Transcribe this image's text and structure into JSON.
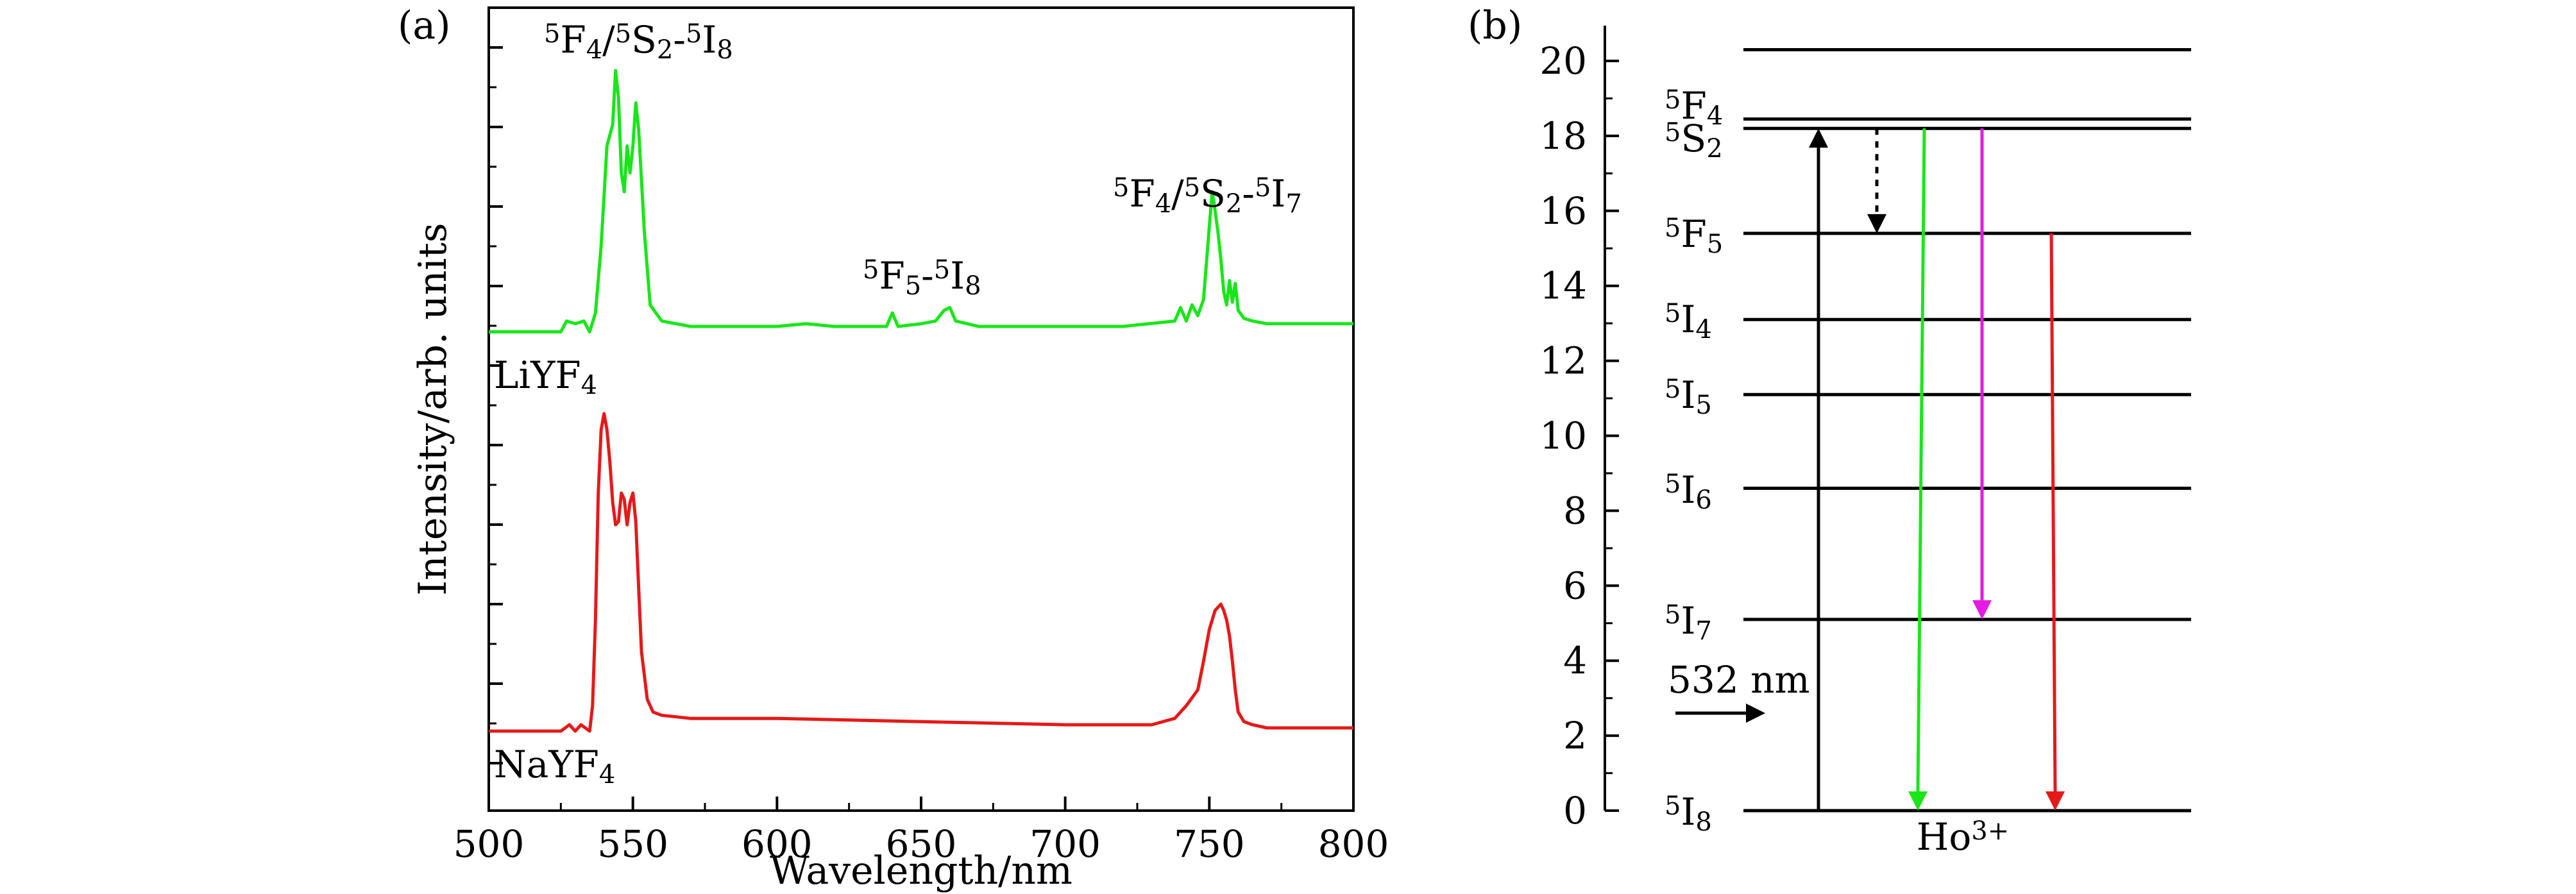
{
  "panel_a": {
    "label": "(a)",
    "xlabel": "Wavelength/nm",
    "ylabel": "Intensity/arb. units",
    "annotations": [
      {
        "id": "a1",
        "parts": [
          [
            "sup",
            "5"
          ],
          [
            "t",
            "F"
          ],
          [
            "sub",
            "4"
          ],
          [
            "t",
            "/"
          ],
          [
            "sup",
            "5"
          ],
          [
            "t",
            "S"
          ],
          [
            "sub",
            "2"
          ],
          [
            "t",
            "-"
          ],
          [
            "sup",
            "5"
          ],
          [
            "t",
            "I"
          ],
          [
            "sub",
            "8"
          ]
        ]
      },
      {
        "id": "a2",
        "parts": [
          [
            "sup",
            "5"
          ],
          [
            "t",
            "F"
          ],
          [
            "sub",
            "5"
          ],
          [
            "t",
            "-"
          ],
          [
            "sup",
            "5"
          ],
          [
            "t",
            "I"
          ],
          [
            "sub",
            "8"
          ]
        ]
      },
      {
        "id": "a3",
        "parts": [
          [
            "sup",
            "5"
          ],
          [
            "t",
            "F"
          ],
          [
            "sub",
            "4"
          ],
          [
            "t",
            "/"
          ],
          [
            "sup",
            "5"
          ],
          [
            "t",
            "S"
          ],
          [
            "sub",
            "2"
          ],
          [
            "t",
            "-"
          ],
          [
            "sup",
            "5"
          ],
          [
            "t",
            "I"
          ],
          [
            "sub",
            "7"
          ]
        ]
      }
    ],
    "sample_labels": [
      {
        "id": "s1",
        "parts": [
          [
            "t",
            "LiYF"
          ],
          [
            "sub",
            "4"
          ]
        ]
      },
      {
        "id": "s2",
        "parts": [
          [
            "t",
            "NaYF"
          ],
          [
            "sub",
            "4"
          ]
        ]
      }
    ]
  },
  "panel_b": {
    "label": "(b)",
    "laser_label": "532 nm",
    "ion_label": [
      [
        "t",
        "Ho"
      ],
      [
        "sup",
        "3+"
      ]
    ],
    "level_labels": [
      {
        "id": "l_5F4",
        "parts": [
          [
            "sup",
            "5"
          ],
          [
            "t",
            "F"
          ],
          [
            "sub",
            "4"
          ]
        ]
      },
      {
        "id": "l_5S2",
        "parts": [
          [
            "sup",
            "5"
          ],
          [
            "t",
            "S"
          ],
          [
            "sub",
            "2"
          ]
        ]
      },
      {
        "id": "l_5F5",
        "parts": [
          [
            "sup",
            "5"
          ],
          [
            "t",
            "F"
          ],
          [
            "sub",
            "5"
          ]
        ]
      },
      {
        "id": "l_5I4",
        "parts": [
          [
            "sup",
            "5"
          ],
          [
            "t",
            "I"
          ],
          [
            "sub",
            "4"
          ]
        ]
      },
      {
        "id": "l_5I5",
        "parts": [
          [
            "sup",
            "5"
          ],
          [
            "t",
            "I"
          ],
          [
            "sub",
            "5"
          ]
        ]
      },
      {
        "id": "l_5I6",
        "parts": [
          [
            "sup",
            "5"
          ],
          [
            "t",
            "I"
          ],
          [
            "sub",
            "6"
          ]
        ]
      },
      {
        "id": "l_5I7",
        "parts": [
          [
            "sup",
            "5"
          ],
          [
            "t",
            "I"
          ],
          [
            "sub",
            "7"
          ]
        ]
      },
      {
        "id": "l_5I8",
        "parts": [
          [
            "sup",
            "5"
          ],
          [
            "t",
            "I"
          ],
          [
            "sub",
            "8"
          ]
        ]
      }
    ]
  },
  "chart_data": [
    {
      "type": "line",
      "panel": "(a)",
      "xlabel": "Wavelength/nm",
      "ylabel": "Intensity/arb. units",
      "xlim": [
        500,
        800
      ],
      "xticks": [
        500,
        550,
        600,
        650,
        700,
        750,
        800
      ],
      "y_ticklabels_shown": false,
      "series": [
        {
          "name": "LiYF4",
          "color": "#19e619",
          "x": [
            500,
            525,
            527,
            530,
            533,
            535,
            537,
            539,
            541,
            543,
            544,
            545,
            546,
            547,
            548,
            549,
            550,
            551,
            552,
            554,
            556,
            560,
            570,
            580,
            600,
            610,
            620,
            630,
            638,
            640,
            642,
            650,
            655,
            658,
            660,
            662,
            670,
            700,
            720,
            738,
            740,
            742,
            744,
            746,
            748,
            750,
            751,
            752,
            753,
            754,
            755,
            756,
            757,
            758,
            759,
            760,
            762,
            765,
            770,
            800
          ],
          "y": [
            0.03,
            0.03,
            0.07,
            0.06,
            0.07,
            0.03,
            0.1,
            0.35,
            0.72,
            0.8,
            1.0,
            0.9,
            0.62,
            0.55,
            0.72,
            0.62,
            0.72,
            0.88,
            0.78,
            0.4,
            0.13,
            0.07,
            0.05,
            0.05,
            0.05,
            0.06,
            0.05,
            0.05,
            0.05,
            0.1,
            0.05,
            0.06,
            0.07,
            0.11,
            0.12,
            0.07,
            0.05,
            0.05,
            0.05,
            0.07,
            0.12,
            0.07,
            0.13,
            0.09,
            0.15,
            0.42,
            0.55,
            0.48,
            0.4,
            0.3,
            0.18,
            0.13,
            0.22,
            0.14,
            0.21,
            0.11,
            0.08,
            0.07,
            0.06,
            0.06
          ]
        },
        {
          "name": "NaYF4",
          "color": "#e61919",
          "x": [
            500,
            520,
            525,
            528,
            530,
            532,
            535,
            536,
            537,
            538,
            539,
            540,
            541,
            542,
            543,
            544,
            545,
            546,
            547,
            548,
            549,
            550,
            551,
            552,
            553,
            555,
            557,
            560,
            570,
            600,
            650,
            700,
            730,
            738,
            742,
            746,
            748,
            750,
            752,
            754,
            755,
            756,
            757,
            758,
            759,
            760,
            762,
            765,
            770,
            800
          ],
          "y": [
            0.0,
            0.0,
            0.0,
            0.02,
            0.0,
            0.02,
            0.0,
            0.08,
            0.35,
            0.75,
            0.95,
            1.0,
            0.95,
            0.85,
            0.72,
            0.65,
            0.66,
            0.75,
            0.73,
            0.65,
            0.72,
            0.75,
            0.66,
            0.45,
            0.25,
            0.1,
            0.06,
            0.05,
            0.04,
            0.04,
            0.03,
            0.02,
            0.02,
            0.04,
            0.08,
            0.13,
            0.22,
            0.32,
            0.38,
            0.4,
            0.38,
            0.35,
            0.3,
            0.22,
            0.13,
            0.06,
            0.03,
            0.02,
            0.01,
            0.01
          ]
        }
      ]
    },
    {
      "type": "diagram",
      "panel": "(b)",
      "ylabel": "",
      "ylim": [
        0,
        20
      ],
      "yticks": [
        0,
        2,
        4,
        6,
        8,
        10,
        12,
        14,
        16,
        18,
        20
      ],
      "energy_levels": [
        {
          "name": "5I8",
          "energy": 0
        },
        {
          "name": "5I7",
          "energy": 5.1
        },
        {
          "name": "5I6",
          "energy": 8.6
        },
        {
          "name": "5I5",
          "energy": 11.1
        },
        {
          "name": "5I4",
          "energy": 13.1
        },
        {
          "name": "5F5",
          "energy": 15.4
        },
        {
          "name": "5S2",
          "energy": 18.2
        },
        {
          "name": "5F4",
          "energy": 18.45
        },
        {
          "name": "",
          "energy": 20.3
        }
      ],
      "transitions": [
        {
          "type": "absorption",
          "from": 0,
          "to": 18.2,
          "color": "#000000",
          "style": "solid"
        },
        {
          "type": "nonradiative",
          "from": 18.2,
          "to": 15.4,
          "color": "#000000",
          "style": "dotted"
        },
        {
          "type": "emission",
          "from": 18.2,
          "to": 0,
          "color": "#19e619",
          "style": "solid"
        },
        {
          "type": "emission",
          "from": 18.2,
          "to": 5.1,
          "color": "#e619e6",
          "style": "solid"
        },
        {
          "type": "emission",
          "from": 15.4,
          "to": 0,
          "color": "#e61919",
          "style": "solid"
        }
      ]
    }
  ]
}
